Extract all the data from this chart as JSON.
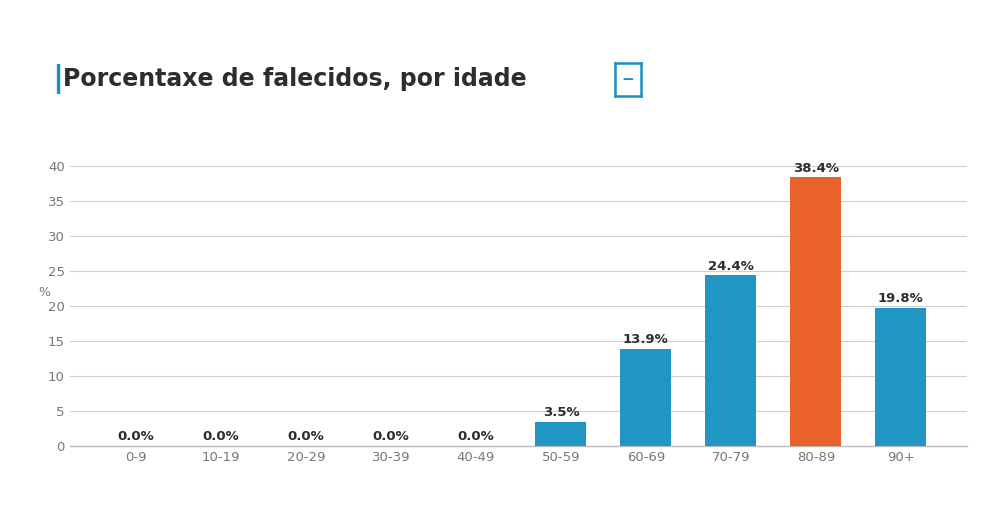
{
  "title": "Porcentaxe de falecidos, por idade",
  "categories": [
    "0-9",
    "10-19",
    "20-29",
    "30-39",
    "40-49",
    "50-59",
    "60-69",
    "70-79",
    "80-89",
    "90+"
  ],
  "values": [
    0.0,
    0.0,
    0.0,
    0.0,
    0.0,
    3.5,
    13.9,
    24.4,
    38.4,
    19.8
  ],
  "bar_colors": [
    "#2196c4",
    "#2196c4",
    "#2196c4",
    "#2196c4",
    "#2196c4",
    "#2196c4",
    "#2196c4",
    "#2196c4",
    "#e8622a",
    "#2196c4"
  ],
  "ylabel": "%",
  "ylim": [
    0,
    42
  ],
  "yticks": [
    0,
    5,
    10,
    15,
    20,
    25,
    30,
    35,
    40
  ],
  "title_color": "#2d2d2d",
  "title_fontsize": 17,
  "accent_color": "#1a8fc1",
  "background_color": "#ffffff",
  "grid_color": "#d0d0d0",
  "label_fontsize": 9.5,
  "tick_fontsize": 9.5
}
